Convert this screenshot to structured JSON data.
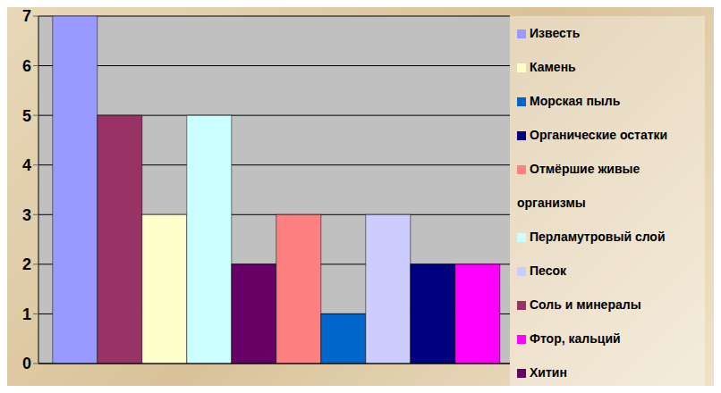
{
  "chart_data": {
    "type": "bar",
    "categories": [
      null
    ],
    "series": [
      {
        "name": "Известь",
        "color": "#9999ff",
        "values": [
          7
        ]
      },
      {
        "name": "Соль и минералы",
        "color": "#993366",
        "values": [
          5
        ]
      },
      {
        "name": "Камень",
        "color": "#ffffcc",
        "values": [
          3
        ]
      },
      {
        "name": "Перламутровый слой",
        "color": "#ccffff",
        "values": [
          5
        ]
      },
      {
        "name": "Хитин",
        "color": "#660066",
        "values": [
          2
        ]
      },
      {
        "name": "Отмёршие живые организмы",
        "color": "#ff8080",
        "values": [
          3
        ]
      },
      {
        "name": "Морская пыль",
        "color": "#0066cc",
        "values": [
          1
        ]
      },
      {
        "name": "Песок",
        "color": "#ccccff",
        "values": [
          3
        ]
      },
      {
        "name": "Органические остатки",
        "color": "#000080",
        "values": [
          2
        ]
      },
      {
        "name": "Фтор, кальций",
        "color": "#ff00ff",
        "values": [
          2
        ]
      }
    ],
    "ylim": [
      0,
      7
    ],
    "yticks": [
      0,
      1,
      2,
      3,
      4,
      5,
      6,
      7
    ],
    "grid": true,
    "legend": "right",
    "tick_labels": "y"
  }
}
